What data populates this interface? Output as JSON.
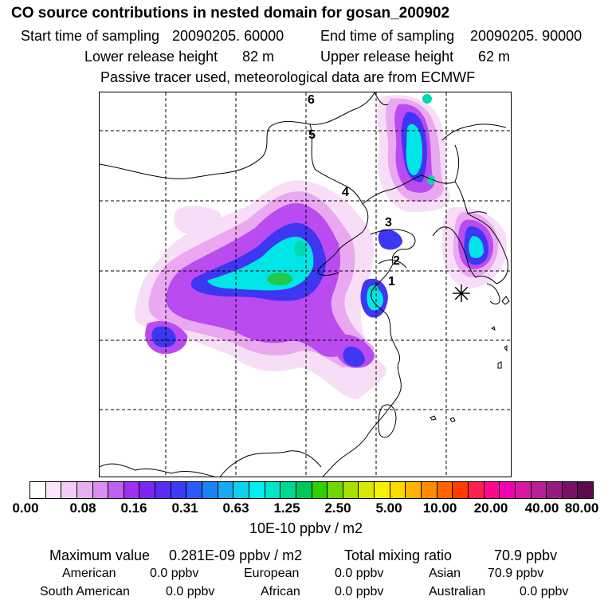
{
  "header": {
    "title": "CO  source contributions in nested domain for gosan_200902",
    "start_time_label": "Start time of sampling",
    "start_time_value": "20090205. 60000",
    "end_time_label": "End time of sampling",
    "end_time_value": "20090205. 90000",
    "lower_height_label": "Lower release height",
    "lower_height_value": "82 m",
    "upper_height_label": "Upper release height",
    "upper_height_value": "62 m",
    "tracer_note": "Passive tracer used, meteorological data are from ECMWF"
  },
  "map": {
    "trajectory_labels": [
      "1",
      "2",
      "3",
      "4",
      "5",
      "6"
    ],
    "receptor_symbol": "✳",
    "plume_colors": {
      "faint": "#f7dcf7",
      "light": "#e9a8ef",
      "violet": "#b94bf0",
      "blue": "#3f36f2",
      "cyan": "#00e6e6",
      "teal": "#00d8b0",
      "green": "#22c94a"
    }
  },
  "colorbar": {
    "colors": [
      "#ffffff",
      "#fae6fa",
      "#f2ccf5",
      "#e9b0f0",
      "#d890f0",
      "#c060f0",
      "#a030f0",
      "#7a28f0",
      "#5a2ef2",
      "#3c3cf5",
      "#2a5cf5",
      "#1e82f5",
      "#1aa8f5",
      "#10d0f0",
      "#00f0f0",
      "#00e6c8",
      "#00d890",
      "#00c85a",
      "#30d000",
      "#70d800",
      "#a8e000",
      "#d8e800",
      "#f8f000",
      "#ffd800",
      "#ffb400",
      "#ff8c00",
      "#ff6400",
      "#ff3c00",
      "#ff2050",
      "#ff0890",
      "#f000b4",
      "#d818a0",
      "#b81e96",
      "#9a1882",
      "#7a1068",
      "#5c0a50"
    ],
    "ticks": [
      "0.00",
      "0.08",
      "0.16",
      "0.31",
      "0.63",
      "1.25",
      "2.50",
      "5.00",
      "10.00",
      "20.00",
      "40.00",
      "80.00"
    ],
    "unit": "10E-10 ppbv / m2"
  },
  "stats": {
    "max_label": "Maximum value",
    "max_value": "0.281E-09 ppbv / m2",
    "total_label": "Total mixing ratio",
    "total_value": "70.9 ppbv",
    "regions": [
      {
        "name": "American",
        "value": "0.0 ppbv"
      },
      {
        "name": "European",
        "value": "0.0 ppbv"
      },
      {
        "name": "Asian",
        "value": "70.9 ppbv"
      },
      {
        "name": "South American",
        "value": "0.0 ppbv"
      },
      {
        "name": "African",
        "value": "0.0 ppbv"
      },
      {
        "name": "Australian",
        "value": "0.0 ppbv"
      }
    ]
  }
}
